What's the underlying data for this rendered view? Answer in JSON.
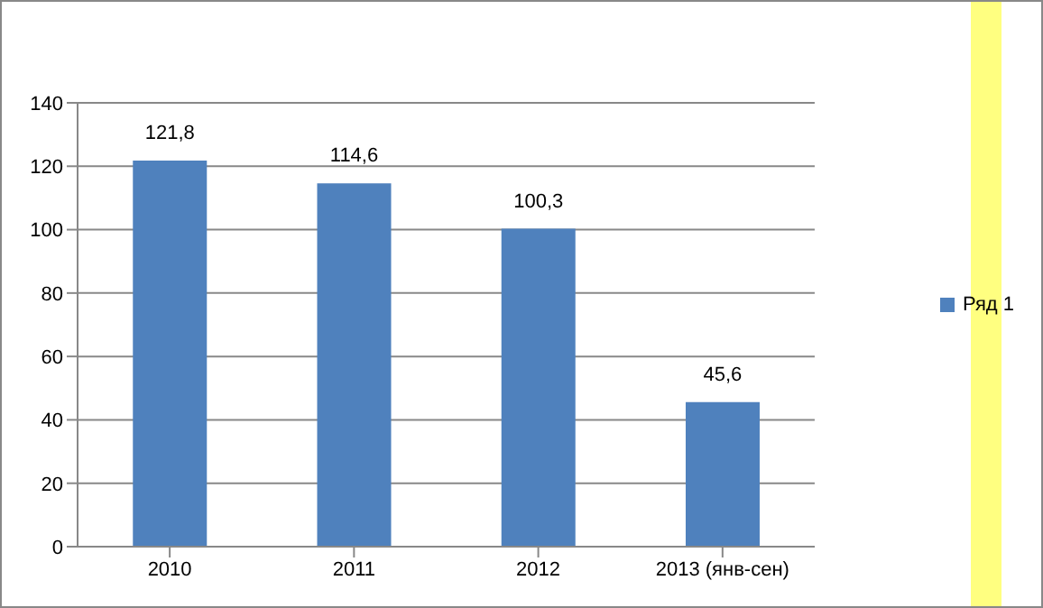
{
  "chart_data": {
    "type": "bar",
    "categories": [
      "2010",
      "2011",
      "2012",
      "2013 (янв-сен)"
    ],
    "series": [
      {
        "name": "Ряд 1",
        "color": "#4f81bd",
        "values": [
          121.8,
          114.6,
          100.3,
          45.6
        ],
        "value_labels": [
          "121,8",
          "114,6",
          "100,3",
          "45,6"
        ]
      }
    ],
    "ylim": [
      0,
      140
    ],
    "yticks": [
      0,
      20,
      40,
      60,
      80,
      100,
      120,
      140
    ],
    "grid": "y",
    "legend": "right"
  }
}
